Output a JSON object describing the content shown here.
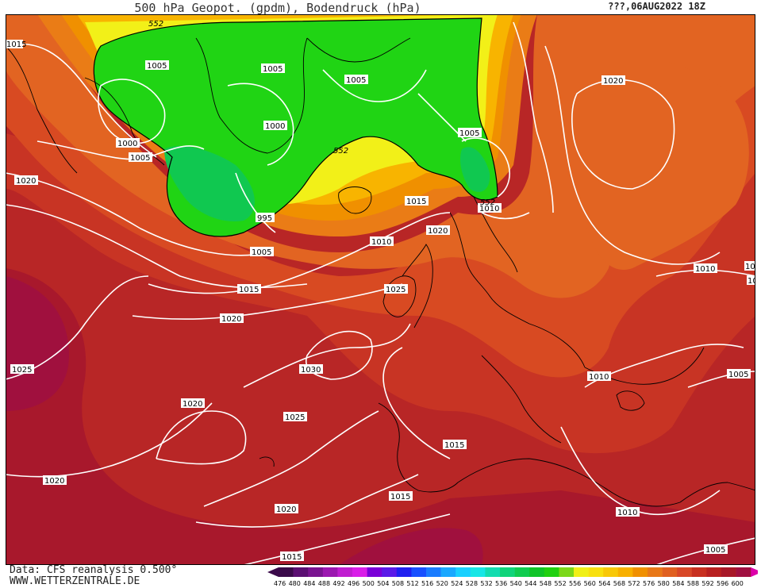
{
  "header": {
    "title": "500 hPa Geopot. (gpdm), Bodendruck (hPa)",
    "datetime": "???,06AUG2022 18Z"
  },
  "footer": {
    "data_source": "Data: CFS reanalysis 0.500°",
    "website": "WWW.WETTERZENTRALE.DE"
  },
  "isobar_labels": [
    {
      "id": "iso-1",
      "text": "1015"
    },
    {
      "id": "iso-2",
      "text": "1005"
    },
    {
      "id": "iso-3",
      "text": "1005"
    },
    {
      "id": "iso-4",
      "text": "1005"
    },
    {
      "id": "iso-5",
      "text": "1000"
    },
    {
      "id": "iso-6",
      "text": "1000"
    },
    {
      "id": "iso-7",
      "text": "1005"
    },
    {
      "id": "iso-8",
      "text": "1005"
    },
    {
      "id": "iso-9",
      "text": "1020"
    },
    {
      "id": "iso-10",
      "text": "995"
    },
    {
      "id": "iso-11",
      "text": "1020"
    },
    {
      "id": "iso-12",
      "text": "1015"
    },
    {
      "id": "iso-13",
      "text": "1010"
    },
    {
      "id": "iso-14",
      "text": "1010"
    },
    {
      "id": "iso-15",
      "text": "1020"
    },
    {
      "id": "iso-16",
      "text": "1005"
    },
    {
      "id": "iso-17",
      "text": "1015"
    },
    {
      "id": "iso-18",
      "text": "1025"
    },
    {
      "id": "iso-19",
      "text": "1020"
    },
    {
      "id": "iso-20",
      "text": "1025"
    },
    {
      "id": "iso-21",
      "text": "1030"
    },
    {
      "id": "iso-22",
      "text": "1010"
    },
    {
      "id": "iso-23",
      "text": "1010"
    },
    {
      "id": "iso-24",
      "text": "1005"
    },
    {
      "id": "iso-25",
      "text": "1020"
    },
    {
      "id": "iso-26",
      "text": "1025"
    },
    {
      "id": "iso-27",
      "text": "1015"
    },
    {
      "id": "iso-28",
      "text": "1020"
    },
    {
      "id": "iso-29",
      "text": "1015"
    },
    {
      "id": "iso-30",
      "text": "1020"
    },
    {
      "id": "iso-31",
      "text": "1010"
    },
    {
      "id": "iso-32",
      "text": "1015"
    },
    {
      "id": "iso-33",
      "text": "1005"
    },
    {
      "id": "iso-34",
      "text": "10"
    },
    {
      "id": "iso-35",
      "text": "10"
    }
  ],
  "geopot_labels": [
    {
      "id": "gp-1",
      "text": "552"
    },
    {
      "id": "gp-2",
      "text": "552"
    },
    {
      "id": "gp-3",
      "text": "552"
    }
  ],
  "legend": {
    "values": [
      "476",
      "480",
      "484",
      "488",
      "492",
      "496",
      "500",
      "504",
      "508",
      "512",
      "516",
      "520",
      "524",
      "528",
      "532",
      "536",
      "540",
      "544",
      "548",
      "552",
      "556",
      "560",
      "564",
      "568",
      "572",
      "576",
      "580",
      "584",
      "588",
      "592",
      "596",
      "600"
    ],
    "colors": [
      "#3a0a4a",
      "#5b0f72",
      "#7a1490",
      "#9c18b0",
      "#c01ed0",
      "#d91ee8",
      "#7a00d8",
      "#5a1ae8",
      "#2020f0",
      "#1850ff",
      "#1a7cff",
      "#1aa8ff",
      "#1ad0ff",
      "#18e6e6",
      "#14dcb0",
      "#10d47a",
      "#10cc50",
      "#10c428",
      "#20d010",
      "#7cd81a",
      "#f0f018",
      "#f8e010",
      "#f8c808",
      "#f8b000",
      "#f09000",
      "#e87818",
      "#e06020",
      "#d84828",
      "#c83020",
      "#b82020",
      "#a81828",
      "#a01040"
    ],
    "marker_color": "#dd00aa"
  }
}
